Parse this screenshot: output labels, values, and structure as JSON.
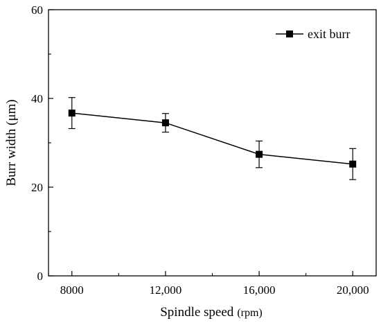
{
  "chart_data": {
    "type": "line",
    "x": [
      8000,
      12000,
      16000,
      20000
    ],
    "x_tick_labels": [
      "8000",
      "12,000",
      "16,000",
      "20,000"
    ],
    "y_ticks": [
      0,
      20,
      40,
      60
    ],
    "xlim": [
      7000,
      21000
    ],
    "ylim": [
      0,
      60
    ],
    "xlabel": "Spindle speed",
    "xlabel_unit": "(rpm)",
    "ylabel": "Burr width (μm)",
    "legend_position": "top-right",
    "grid": false,
    "series": [
      {
        "name": "exit burr",
        "color": "#000000",
        "marker": "square",
        "values": [
          36.7,
          34.5,
          27.4,
          25.2
        ],
        "error": [
          3.5,
          2.1,
          3.0,
          3.5
        ]
      }
    ]
  }
}
